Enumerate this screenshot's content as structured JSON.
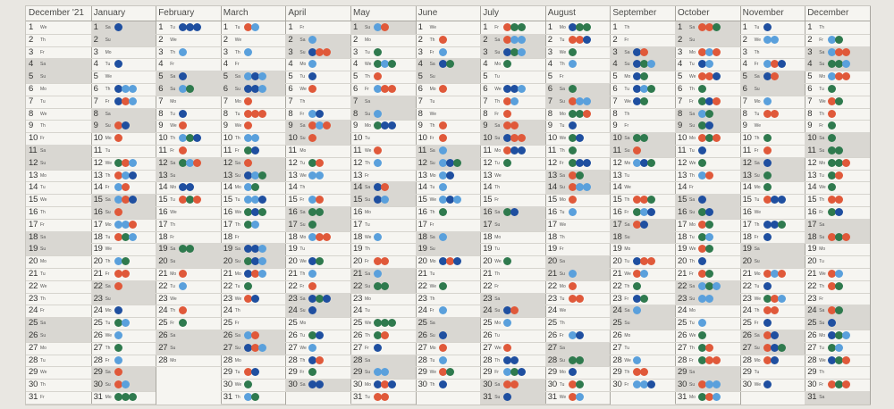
{
  "planner": {
    "months": [
      {
        "name": "December '21",
        "days": 31,
        "start": 3
      },
      {
        "name": "January",
        "days": 31,
        "start": 6
      },
      {
        "name": "February",
        "days": 28,
        "start": 2
      },
      {
        "name": "March",
        "days": 31,
        "start": 2
      },
      {
        "name": "April",
        "days": 30,
        "start": 5
      },
      {
        "name": "May",
        "days": 31,
        "start": 0
      },
      {
        "name": "June",
        "days": 30,
        "start": 3
      },
      {
        "name": "July",
        "days": 31,
        "start": 5
      },
      {
        "name": "August",
        "days": 31,
        "start": 1
      },
      {
        "name": "September",
        "days": 30,
        "start": 4
      },
      {
        "name": "October",
        "days": 31,
        "start": 6
      },
      {
        "name": "November",
        "days": 30,
        "start": 2
      },
      {
        "name": "December",
        "days": 31,
        "start": 4
      }
    ],
    "weekday_abbr": [
      "Su",
      "Mo",
      "Tu",
      "We",
      "Th",
      "Fr",
      "Sa"
    ],
    "dot_colors": {
      "red": "#e0593a",
      "lightblue": "#5aa0dc",
      "darkblue": "#1f4fa0",
      "green": "#2f7a4e"
    }
  }
}
